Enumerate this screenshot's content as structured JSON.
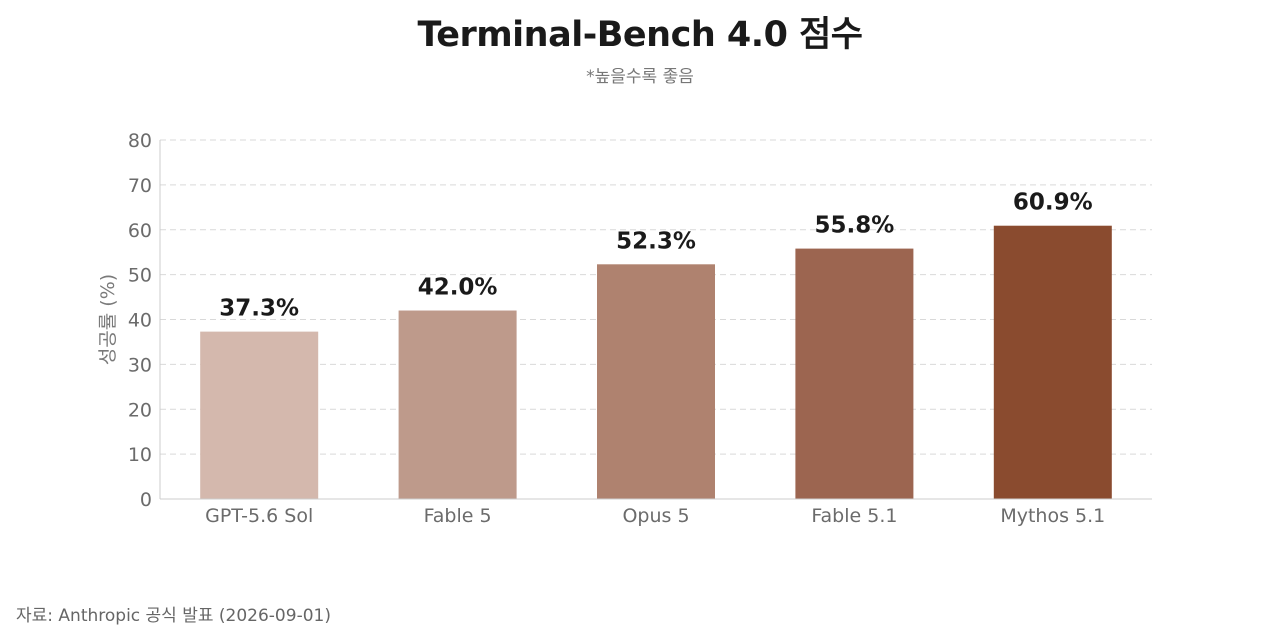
{
  "title": "Terminal-Bench 4.0 점수",
  "subtitle": "*높을수록 좋음",
  "source": "자료: Anthropic 공식 발표 (2026-09-01)",
  "chart_data": {
    "type": "bar",
    "title": "Terminal-Bench 4.0 점수",
    "subtitle": "*높을수록 좋음",
    "xlabel": "",
    "ylabel": "성공률 (%)",
    "categories": [
      "GPT-5.6 Sol",
      "Fable 5",
      "Opus 5",
      "Fable 5.1",
      "Mythos 5.1"
    ],
    "values": [
      37.3,
      42.0,
      52.3,
      55.8,
      60.9
    ],
    "data_labels": [
      "37.3%",
      "42.0%",
      "52.3%",
      "55.8%",
      "60.9%"
    ],
    "colors": [
      "#d4b8ad",
      "#be9a8b",
      "#af826f",
      "#9c6550",
      "#8a4b2f"
    ],
    "ylim": [
      0,
      80
    ],
    "yticks": [
      0,
      10,
      20,
      30,
      40,
      50,
      60,
      70,
      80
    ],
    "grid": true,
    "legend": "none"
  }
}
